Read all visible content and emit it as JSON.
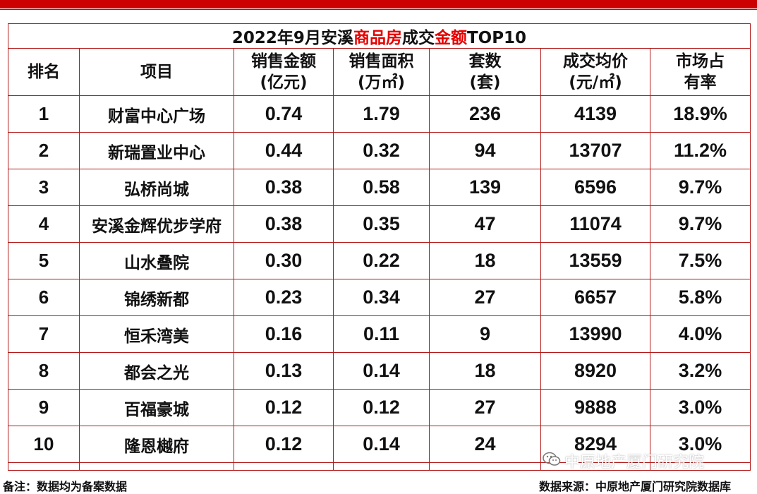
{
  "title": {
    "prefix": "2022年9月安溪",
    "highlight1": "商品房",
    "middle": "成交",
    "highlight2": "金额",
    "suffix": "TOP10"
  },
  "headers": {
    "rank": "排名",
    "project": "项目",
    "amount_l1": "销售金额",
    "amount_l2": "(亿元)",
    "area_l1": "销售面积",
    "area_l2": "(万㎡)",
    "units_l1": "套数",
    "units_l2": "(套)",
    "price_l1": "成交均价",
    "price_l2": "(元/㎡)",
    "share_l1": "市场占",
    "share_l2": "有率"
  },
  "rows": [
    {
      "rank": "1",
      "project": "财富中心广场",
      "amount": "0.74",
      "area": "1.79",
      "units": "236",
      "price": "4139",
      "share": "18.9%"
    },
    {
      "rank": "2",
      "project": "新瑞置业中心",
      "amount": "0.44",
      "area": "0.32",
      "units": "94",
      "price": "13707",
      "share": "11.2%"
    },
    {
      "rank": "3",
      "project": "弘桥尚城",
      "amount": "0.38",
      "area": "0.58",
      "units": "139",
      "price": "6596",
      "share": "9.7%"
    },
    {
      "rank": "4",
      "project": "安溪金辉优步学府",
      "amount": "0.38",
      "area": "0.35",
      "units": "47",
      "price": "11074",
      "share": "9.7%"
    },
    {
      "rank": "5",
      "project": "山水叠院",
      "amount": "0.30",
      "area": "0.22",
      "units": "18",
      "price": "13559",
      "share": "7.5%"
    },
    {
      "rank": "6",
      "project": "锦绣新都",
      "amount": "0.23",
      "area": "0.34",
      "units": "27",
      "price": "6657",
      "share": "5.8%"
    },
    {
      "rank": "7",
      "project": "恒禾湾美",
      "amount": "0.16",
      "area": "0.11",
      "units": "9",
      "price": "13990",
      "share": "4.0%"
    },
    {
      "rank": "8",
      "project": "都会之光",
      "amount": "0.13",
      "area": "0.14",
      "units": "18",
      "price": "8920",
      "share": "3.2%"
    },
    {
      "rank": "9",
      "project": "百福豪城",
      "amount": "0.12",
      "area": "0.12",
      "units": "27",
      "price": "9888",
      "share": "3.0%"
    },
    {
      "rank": "10",
      "project": "隆恩樾府",
      "amount": "0.12",
      "area": "0.14",
      "units": "24",
      "price": "8294",
      "share": "3.0%"
    }
  ],
  "footer": {
    "note": "备注：数据均为备案数据",
    "source": "数据来源：中原地产厦门研究院数据库"
  },
  "watermark": {
    "account": "中原地产厦门研究院",
    "icon": "wechat-icon"
  },
  "colors": {
    "accent": "#e60000",
    "border": "#b21a1a",
    "topbar": "#cc0000"
  }
}
